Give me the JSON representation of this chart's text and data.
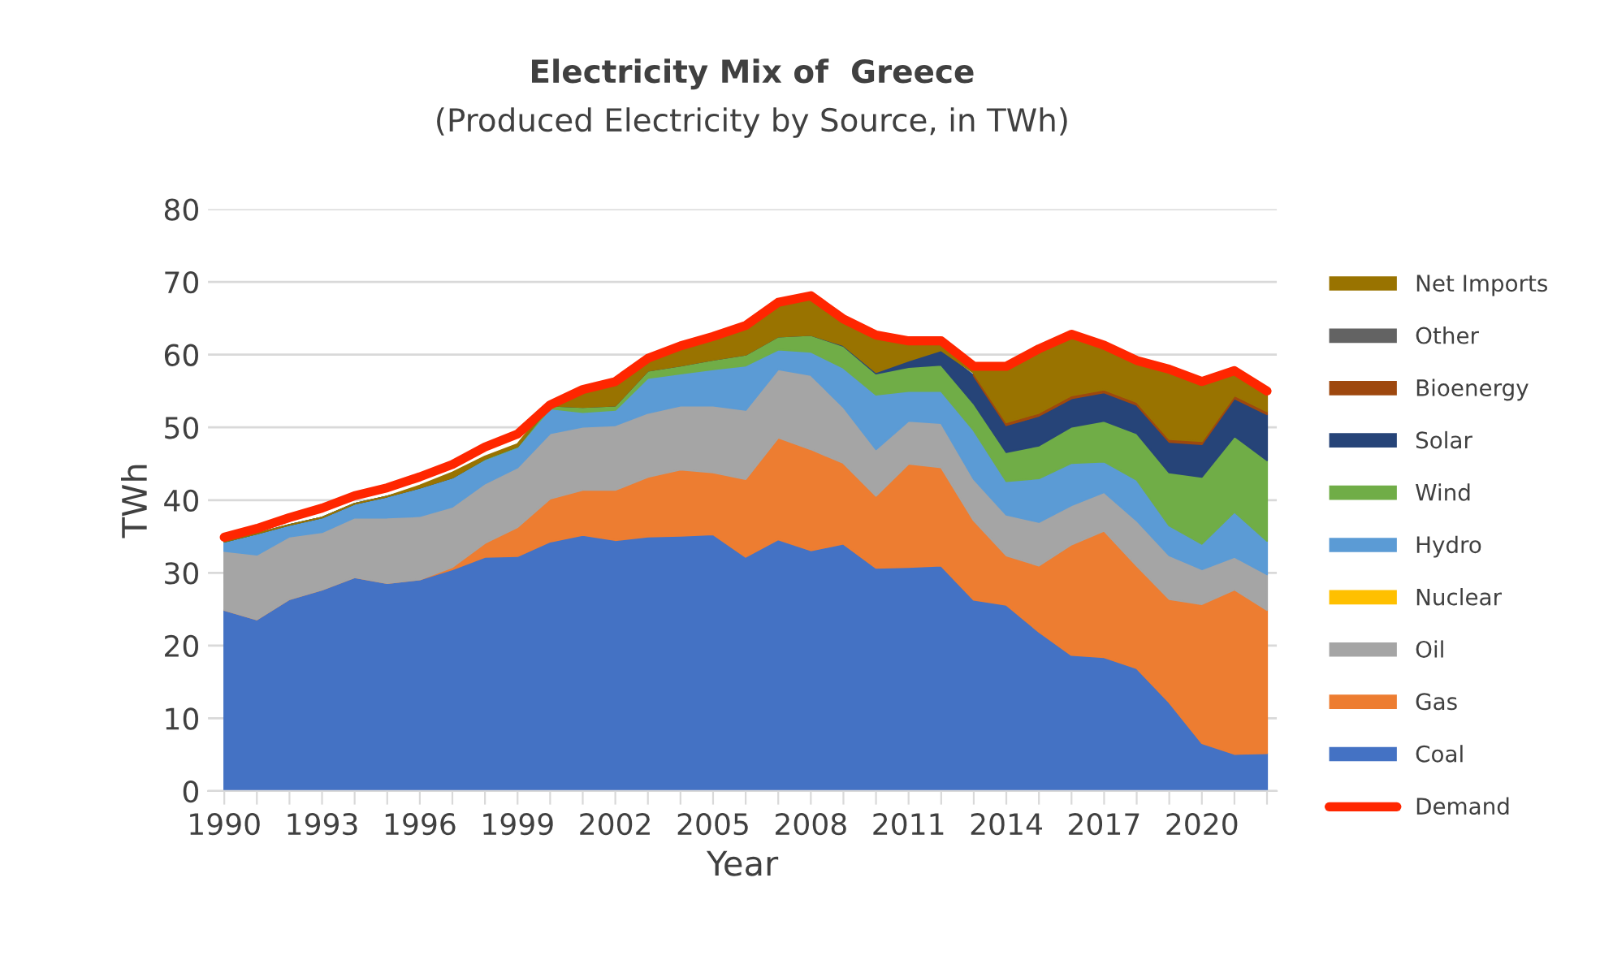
{
  "chart_data": {
    "type": "area",
    "stacked": true,
    "title": "Electricity Mix of  Greece",
    "subtitle": "(Produced Electricity by Source, in TWh)",
    "xlabel": "Year",
    "ylabel": "TWh",
    "x": [
      1990,
      1991,
      1992,
      1993,
      1994,
      1995,
      1996,
      1997,
      1998,
      1999,
      2000,
      2001,
      2002,
      2003,
      2004,
      2005,
      2006,
      2007,
      2008,
      2009,
      2010,
      2011,
      2012,
      2013,
      2014,
      2015,
      2016,
      2017,
      2018,
      2019,
      2020,
      2021,
      2022
    ],
    "xlim": [
      1989.5,
      2022.3
    ],
    "xticks": [
      1990,
      {
        "value": 1991,
        "label": null
      },
      {
        "value": 1992,
        "label": null
      },
      1993,
      {
        "value": 1994,
        "label": null
      },
      {
        "value": 1995,
        "label": null
      },
      1996,
      {
        "value": 1997,
        "label": null
      },
      {
        "value": 1998,
        "label": null
      },
      1999,
      {
        "value": 2000,
        "label": null
      },
      {
        "value": 2001,
        "label": null
      },
      2002,
      {
        "value": 2003,
        "label": null
      },
      {
        "value": 2004,
        "label": null
      },
      2005,
      {
        "value": 2006,
        "label": null
      },
      {
        "value": 2007,
        "label": null
      },
      2008,
      {
        "value": 2009,
        "label": null
      },
      {
        "value": 2010,
        "label": null
      },
      2011,
      {
        "value": 2012,
        "label": null
      },
      {
        "value": 2013,
        "label": null
      },
      2014,
      {
        "value": 2015,
        "label": null
      },
      {
        "value": 2016,
        "label": null
      },
      2017,
      {
        "value": 2018,
        "label": null
      },
      {
        "value": 2019,
        "label": null
      },
      2020,
      {
        "value": 2021,
        "label": null
      },
      {
        "value": 2022,
        "label": null
      }
    ],
    "ylim": [
      0,
      80
    ],
    "yticks": [
      0,
      10,
      20,
      30,
      40,
      50,
      60,
      70,
      80
    ],
    "grid": "y",
    "legend": "right",
    "series": [
      {
        "name": "Coal",
        "color": "#4472c4",
        "values": [
          24.9,
          23.6,
          26.4,
          27.7,
          29.4,
          28.6,
          29.1,
          30.5,
          32.2,
          32.3,
          34.3,
          35.2,
          34.5,
          35.0,
          35.1,
          35.3,
          32.2,
          34.6,
          33.1,
          34.0,
          30.7,
          30.8,
          31.0,
          26.3,
          25.6,
          21.9,
          18.7,
          18.4,
          16.9,
          12.2,
          6.6,
          5.1,
          5.2
        ]
      },
      {
        "name": "Gas",
        "color": "#ed7d31",
        "values": [
          0,
          0,
          0,
          0,
          0,
          0,
          0,
          0.3,
          1.9,
          4.0,
          5.9,
          6.2,
          6.9,
          8.2,
          9.1,
          8.5,
          10.7,
          14.0,
          13.9,
          11.1,
          9.9,
          14.2,
          13.5,
          10.9,
          6.8,
          9.1,
          15.2,
          17.4,
          14.1,
          14.2,
          19.1,
          22.6,
          19.7
        ]
      },
      {
        "name": "Oil",
        "color": "#a5a5a5",
        "values": [
          8.1,
          8.9,
          8.6,
          7.9,
          8.2,
          9.0,
          8.7,
          8.3,
          8.2,
          8.2,
          9.0,
          8.7,
          8.9,
          8.8,
          8.8,
          9.2,
          9.5,
          9.4,
          10.2,
          7.7,
          6.4,
          5.9,
          6.1,
          5.7,
          5.6,
          6.0,
          5.4,
          5.3,
          6.2,
          6.0,
          4.8,
          4.5,
          4.9
        ]
      },
      {
        "name": "Nuclear",
        "color": "#ffc000",
        "values": [
          null,
          null,
          null,
          null,
          null,
          null,
          null,
          null,
          null,
          null,
          null,
          null,
          null,
          null,
          null,
          null,
          null,
          null,
          null,
          null,
          null,
          null,
          null,
          null,
          null,
          null,
          null,
          null,
          null,
          null,
          null,
          null,
          null
        ]
      },
      {
        "name": "Hydro",
        "color": "#5b9bd5",
        "values": [
          1.3,
          2.9,
          1.6,
          2.0,
          1.9,
          2.9,
          3.9,
          4.0,
          3.3,
          2.8,
          3.4,
          2.0,
          2.1,
          4.8,
          4.4,
          5.0,
          6.1,
          2.7,
          3.2,
          5.4,
          7.5,
          4.1,
          4.4,
          6.7,
          4.6,
          6.0,
          5.8,
          4.2,
          5.6,
          4.1,
          3.5,
          6.2,
          4.6
        ]
      },
      {
        "name": "Wind",
        "color": "#70ad47",
        "values": [
          0,
          0,
          0,
          0,
          0,
          0,
          0,
          0,
          0.1,
          0.1,
          0.4,
          0.7,
          0.6,
          1.0,
          1.1,
          1.3,
          1.5,
          1.8,
          2.3,
          3.0,
          2.9,
          3.3,
          3.6,
          3.7,
          4.0,
          4.5,
          5.0,
          5.6,
          6.4,
          7.3,
          9.2,
          10.4,
          11.1
        ]
      },
      {
        "name": "Solar",
        "color": "#264478",
        "values": [
          0,
          0,
          0,
          0,
          0,
          0,
          0,
          0,
          0,
          0,
          0,
          0,
          0,
          0,
          0,
          0,
          0,
          0,
          0,
          0.1,
          0.2,
          0.9,
          2.0,
          3.8,
          3.7,
          4.1,
          3.9,
          3.9,
          3.9,
          4.2,
          4.5,
          5.2,
          6.3
        ]
      },
      {
        "name": "Bioenergy",
        "color": "#9e480e",
        "values": [
          null,
          null,
          null,
          null,
          null,
          null,
          null,
          null,
          null,
          null,
          null,
          null,
          null,
          null,
          null,
          null,
          null,
          null,
          null,
          null,
          null,
          null,
          null,
          0.4,
          0.4,
          0.4,
          0.4,
          0.4,
          0.4,
          0.4,
          0.4,
          0.4,
          0.4
        ]
      },
      {
        "name": "Other",
        "color": "#636363",
        "values": [
          null,
          null,
          null,
          null,
          null,
          null,
          null,
          null,
          null,
          null,
          null,
          null,
          null,
          null,
          null,
          null,
          null,
          null,
          null,
          null,
          null,
          null,
          null,
          null,
          null,
          null,
          null,
          null,
          null,
          null,
          null,
          null,
          null
        ]
      },
      {
        "name": "Net Imports",
        "color": "#997300",
        "values": [
          0,
          0,
          0,
          0,
          0,
          0,
          0.3,
          0.7,
          0.3,
          0.3,
          0.3,
          2.0,
          2.7,
          1.5,
          2.6,
          2.8,
          4.0,
          4.2,
          4.9,
          3.1,
          4.6,
          2.0,
          0.8,
          1.0,
          7.7,
          8.7,
          8.2,
          6.4,
          5.8,
          9.1,
          8.4,
          3.1,
          2.8
        ]
      },
      {
        "name": "Demand",
        "type": "line",
        "color": "#ff2600",
        "values": [
          34.9,
          36.1,
          37.6,
          38.9,
          40.6,
          41.7,
          43.2,
          44.9,
          47.3,
          49.1,
          53.1,
          55.2,
          56.3,
          59.5,
          61.2,
          62.5,
          64.0,
          67.2,
          68.1,
          64.9,
          62.7,
          61.9,
          61.9,
          58.4,
          58.4,
          60.8,
          62.8,
          61.3,
          59.2,
          58.0,
          56.3,
          57.8,
          55.0
        ]
      }
    ]
  }
}
